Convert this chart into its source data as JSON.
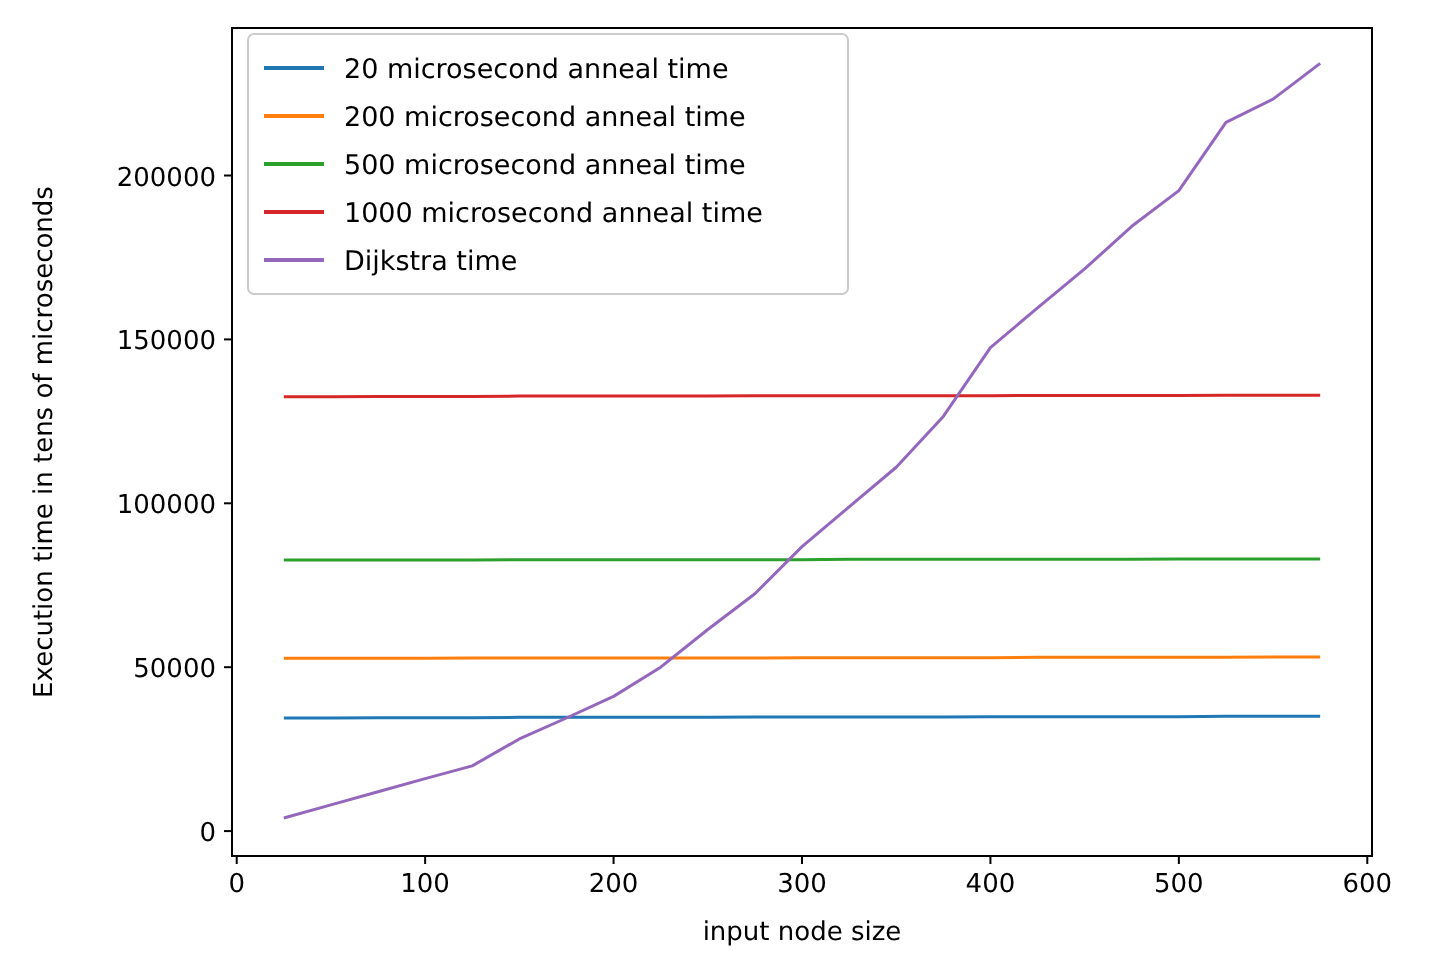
{
  "chart_data": {
    "type": "line",
    "xlabel": "input node size",
    "ylabel": "Execution time in tens of microseconds",
    "x": [
      25,
      50,
      75,
      100,
      125,
      150,
      175,
      200,
      225,
      250,
      275,
      300,
      325,
      350,
      375,
      400,
      425,
      450,
      475,
      500,
      525,
      550,
      575
    ],
    "xlim": [
      -2.5,
      602.5
    ],
    "xticks": [
      0,
      100,
      200,
      300,
      400,
      500,
      600
    ],
    "ylim": [
      -7600,
      245000
    ],
    "yticks": [
      0,
      50000,
      100000,
      150000,
      200000
    ],
    "grid": false,
    "legend": "top left",
    "marker": "none",
    "line_style": "solid",
    "series": [
      {
        "name": "20 microsecond anneal time",
        "color": "#1f77b4",
        "values": [
          34500,
          34500,
          34600,
          34600,
          34600,
          34700,
          34700,
          34700,
          34700,
          34700,
          34800,
          34800,
          34800,
          34800,
          34800,
          34900,
          34900,
          34900,
          34900,
          34900,
          35000,
          35000,
          35000
        ]
      },
      {
        "name": "200 microsecond anneal time",
        "color": "#ff7f0e",
        "values": [
          52700,
          52700,
          52700,
          52700,
          52800,
          52800,
          52800,
          52800,
          52800,
          52800,
          52800,
          52900,
          52900,
          52900,
          52900,
          52900,
          53000,
          53000,
          53000,
          53000,
          53000,
          53100,
          53100
        ]
      },
      {
        "name": "500 microsecond anneal time",
        "color": "#2ca02c",
        "values": [
          82700,
          82700,
          82700,
          82700,
          82700,
          82800,
          82800,
          82800,
          82800,
          82800,
          82800,
          82800,
          82900,
          82900,
          82900,
          82900,
          82900,
          82900,
          82900,
          83000,
          83000,
          83000,
          83000
        ]
      },
      {
        "name": "1000 microsecond anneal time",
        "color": "#d62728",
        "values": [
          132500,
          132500,
          132600,
          132600,
          132600,
          132700,
          132700,
          132700,
          132700,
          132700,
          132800,
          132800,
          132800,
          132800,
          132800,
          132800,
          132900,
          132900,
          132900,
          132900,
          133000,
          133000,
          133000
        ]
      },
      {
        "name": "Dijkstra time",
        "color": "#9467bd",
        "values": [
          4000,
          8000,
          12000,
          16000,
          19900,
          28100,
          34500,
          41100,
          50000,
          61500,
          72400,
          86800,
          98900,
          111000,
          126500,
          147500,
          159600,
          171500,
          184500,
          195400,
          216200,
          223300,
          234200
        ]
      }
    ]
  }
}
